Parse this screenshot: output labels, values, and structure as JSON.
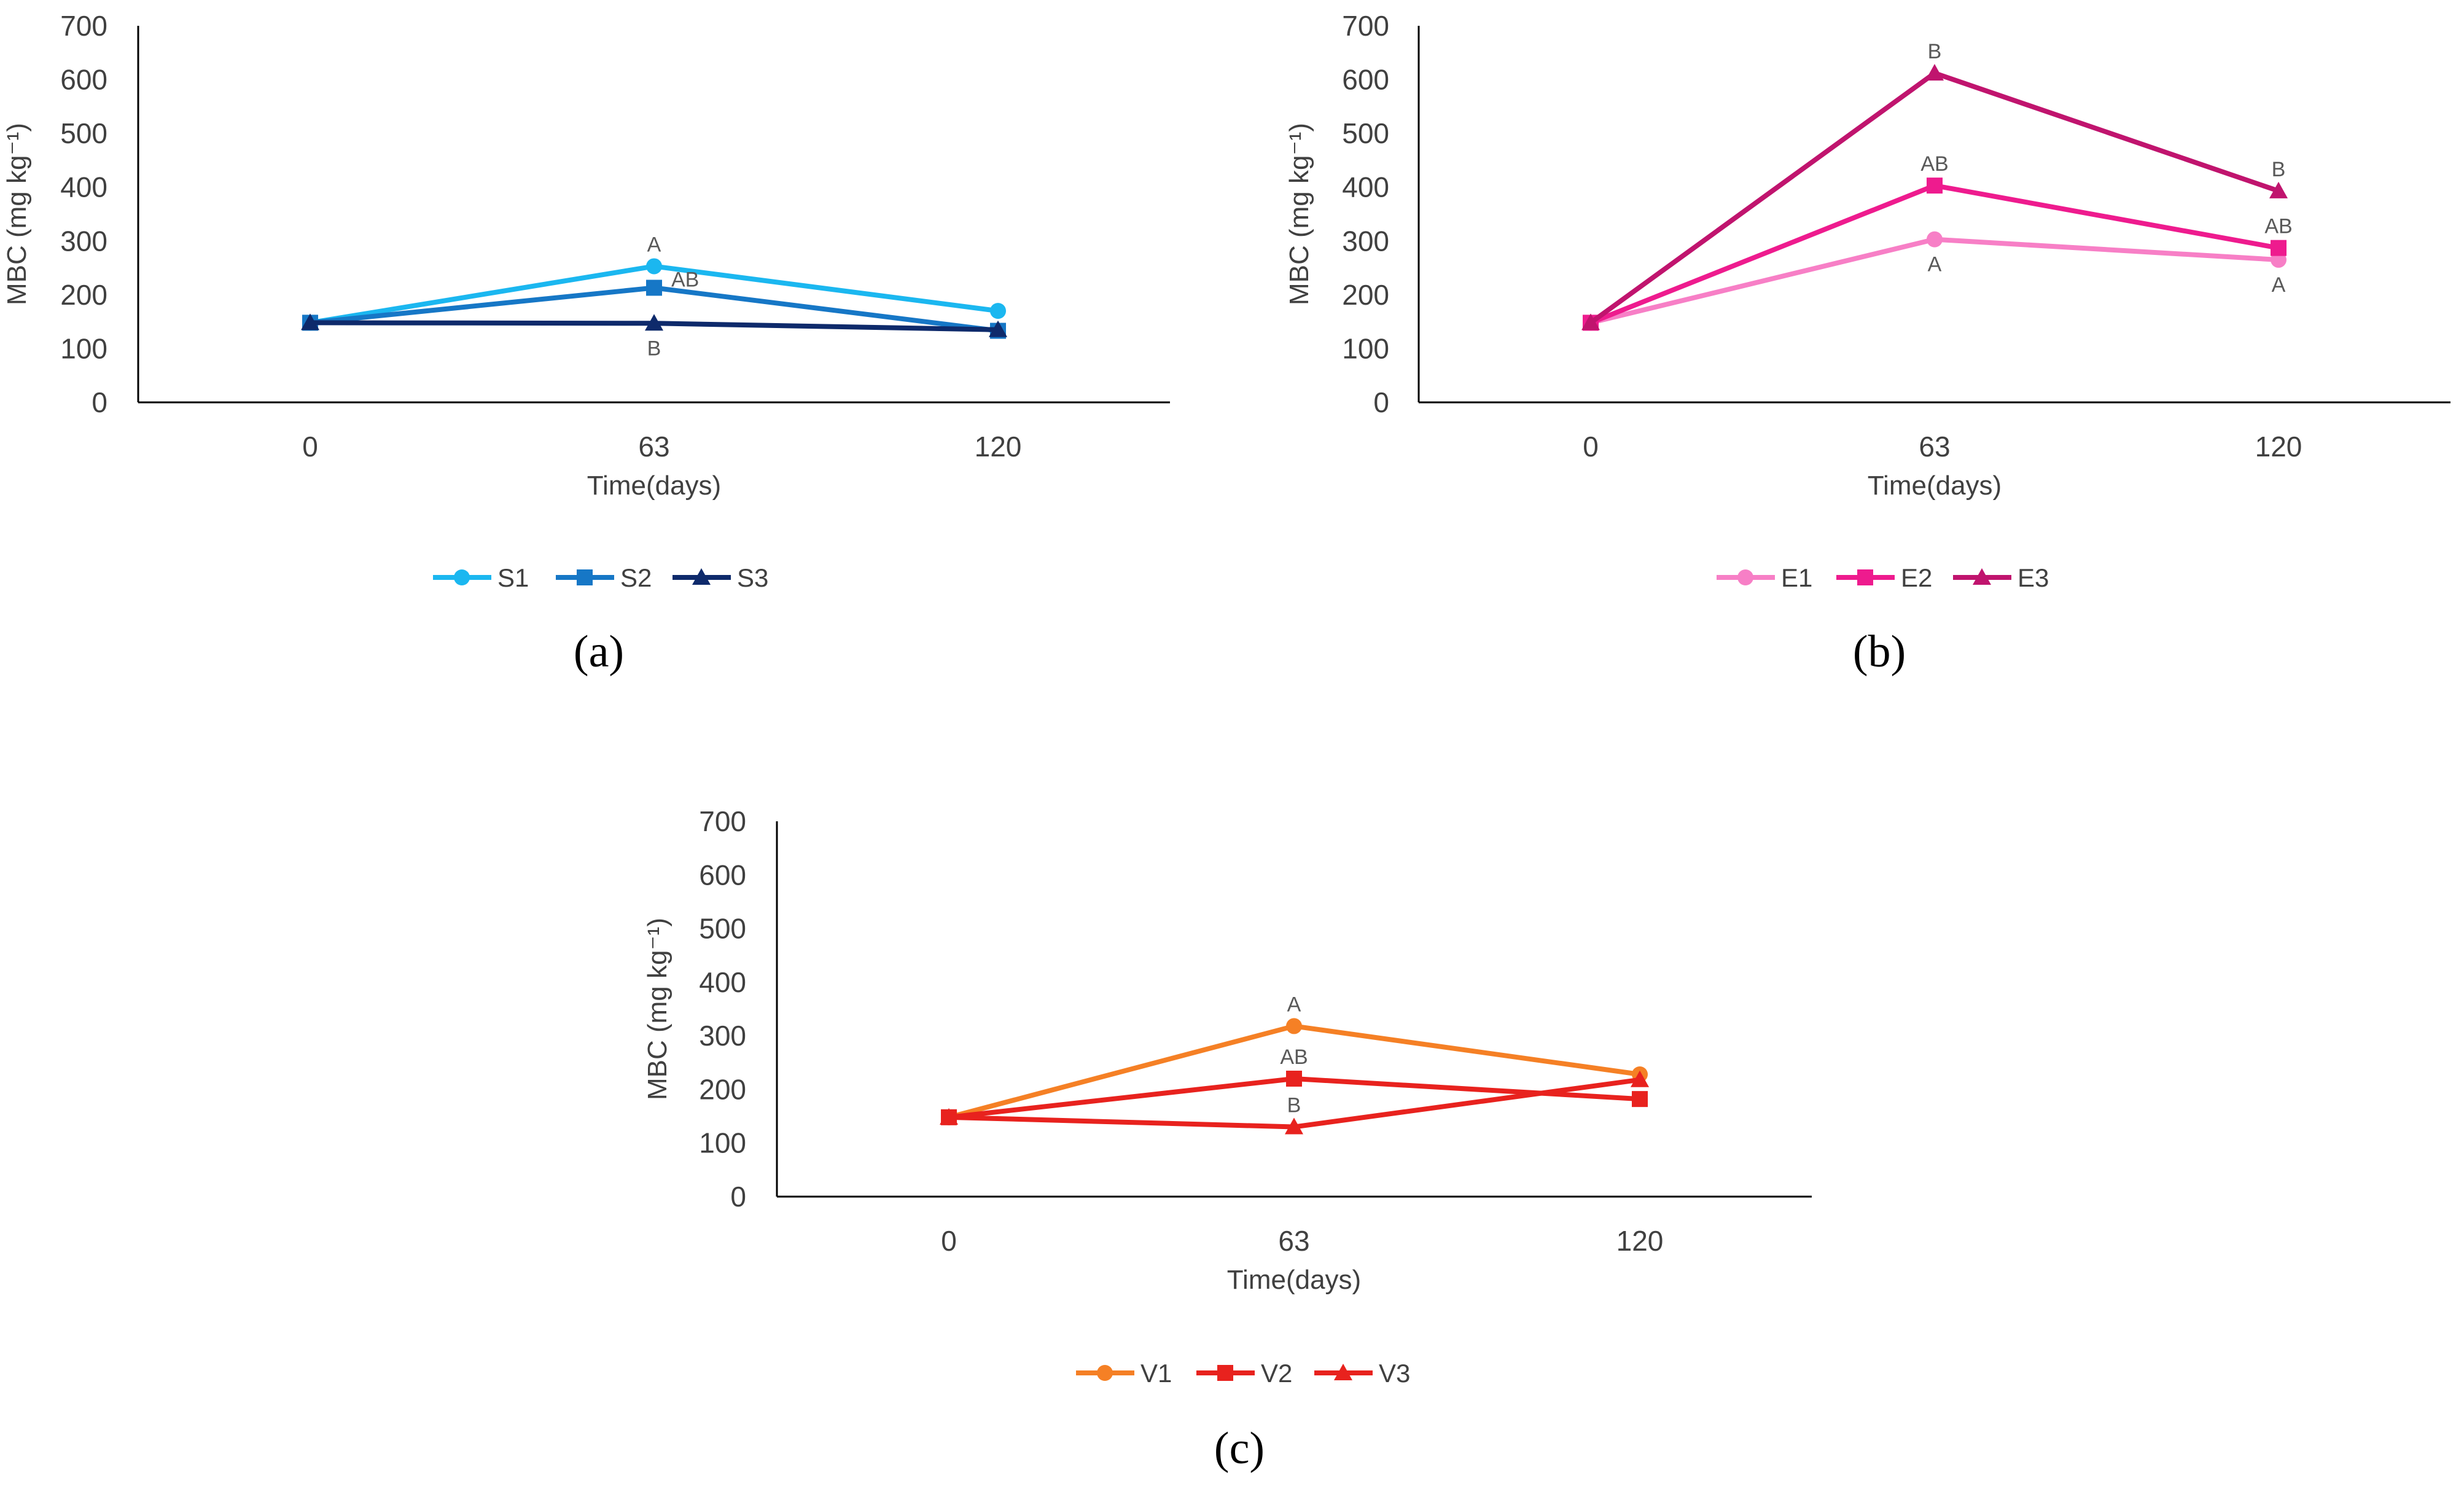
{
  "chart_data": [
    {
      "id": "a",
      "type": "line",
      "panel_label": "(a)",
      "ylabel": "MBC (mg kg⁻¹)",
      "xlabel": "Time(days)",
      "categories": [
        "0",
        "63",
        "120"
      ],
      "ylim": [
        0,
        700
      ],
      "yticks": [
        "0",
        "100",
        "200",
        "300",
        "400",
        "500",
        "600",
        "700"
      ],
      "series": [
        {
          "name": "S1",
          "color": "#1BB7F0",
          "marker": "circle",
          "values": [
            148,
            253,
            170
          ]
        },
        {
          "name": "S2",
          "color": "#1677C6",
          "marker": "square",
          "values": [
            148,
            213,
            133
          ]
        },
        {
          "name": "S3",
          "color": "#0E2A6B",
          "marker": "triangle",
          "values": [
            148,
            147,
            135
          ]
        }
      ],
      "annotations": [
        {
          "text": "A",
          "category": 1,
          "value": 253,
          "position": "above"
        },
        {
          "text": "AB",
          "category": 1,
          "value": 213,
          "position": "right"
        },
        {
          "text": "B",
          "category": 1,
          "value": 147,
          "position": "below"
        }
      ]
    },
    {
      "id": "b",
      "type": "line",
      "panel_label": "(b)",
      "ylabel": "MBC (mg kg⁻¹)",
      "xlabel": "Time(days)",
      "categories": [
        "0",
        "63",
        "120"
      ],
      "ylim": [
        0,
        700
      ],
      "yticks": [
        "0",
        "100",
        "200",
        "300",
        "400",
        "500",
        "600",
        "700"
      ],
      "series": [
        {
          "name": "E1",
          "color": "#F77FC6",
          "marker": "circle",
          "values": [
            148,
            303,
            265
          ]
        },
        {
          "name": "E2",
          "color": "#EE1B8E",
          "marker": "square",
          "values": [
            148,
            403,
            287
          ]
        },
        {
          "name": "E3",
          "color": "#C0146E",
          "marker": "triangle",
          "values": [
            148,
            612,
            393
          ]
        }
      ],
      "annotations": [
        {
          "text": "B",
          "category": 1,
          "value": 612,
          "position": "above"
        },
        {
          "text": "AB",
          "category": 1,
          "value": 403,
          "position": "above"
        },
        {
          "text": "A",
          "category": 1,
          "value": 303,
          "position": "below"
        },
        {
          "text": "B",
          "category": 2,
          "value": 393,
          "position": "above"
        },
        {
          "text": "AB",
          "category": 2,
          "value": 287,
          "position": "above"
        },
        {
          "text": "A",
          "category": 2,
          "value": 265,
          "position": "below"
        }
      ]
    },
    {
      "id": "c",
      "type": "line",
      "panel_label": "(c)",
      "ylabel": "MBC (mg kg⁻¹)",
      "xlabel": "Time(days)",
      "categories": [
        "0",
        "63",
        "120"
      ],
      "ylim": [
        0,
        700
      ],
      "yticks": [
        "0",
        "100",
        "200",
        "300",
        "400",
        "500",
        "600",
        "700"
      ],
      "series": [
        {
          "name": "V1",
          "color": "#F58025",
          "marker": "circle",
          "values": [
            148,
            318,
            228
          ]
        },
        {
          "name": "V2",
          "color": "#E8221E",
          "marker": "square",
          "values": [
            148,
            220,
            182
          ]
        },
        {
          "name": "V3",
          "color": "#E8221E",
          "marker": "triangle",
          "values": [
            148,
            130,
            218
          ]
        }
      ],
      "annotations": [
        {
          "text": "A",
          "category": 1,
          "value": 318,
          "position": "above"
        },
        {
          "text": "AB",
          "category": 1,
          "value": 220,
          "position": "above"
        },
        {
          "text": "B",
          "category": 1,
          "value": 130,
          "position": "above"
        }
      ]
    }
  ]
}
